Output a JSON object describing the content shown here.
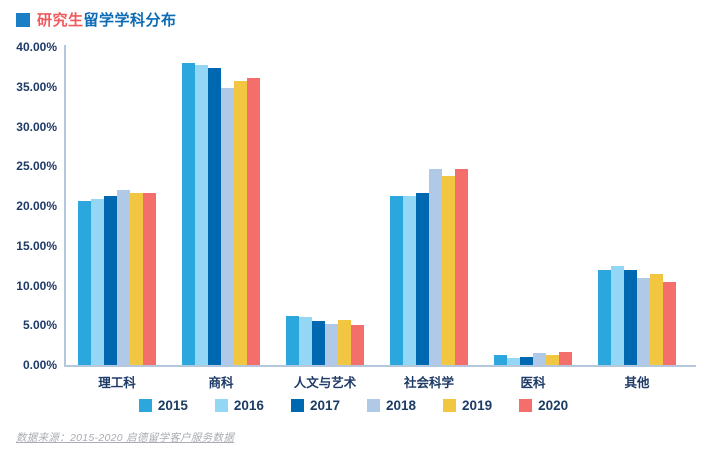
{
  "title": {
    "prefix": "研究生",
    "rest": "留学学科分布",
    "prefix_color": "#F05A5C",
    "rest_color": "#0C6CB5",
    "bullet_color": "#1A7FC4"
  },
  "colors": {
    "axis_line": "#B5C7DC",
    "axis_text": "#1E3A66",
    "footer_text": "#A9ADB3"
  },
  "chart_data": {
    "type": "bar",
    "title": "研究生留学学科分布",
    "categories": [
      "理工科",
      "商科",
      "人文与艺术",
      "社会科学",
      "医科",
      "其他"
    ],
    "series": [
      {
        "name": "2015",
        "color": "#2BA7DE",
        "values": [
          20.6,
          38.0,
          6.2,
          21.2,
          1.3,
          12.0
        ]
      },
      {
        "name": "2016",
        "color": "#93D7F4",
        "values": [
          20.9,
          37.7,
          6.1,
          21.3,
          0.9,
          12.4
        ]
      },
      {
        "name": "2017",
        "color": "#0068B0",
        "values": [
          21.3,
          37.3,
          5.5,
          21.7,
          1.0,
          11.9
        ]
      },
      {
        "name": "2018",
        "color": "#AFC9E6",
        "values": [
          22.0,
          34.9,
          5.2,
          24.6,
          1.5,
          11.0
        ]
      },
      {
        "name": "2019",
        "color": "#F3C642",
        "values": [
          21.7,
          35.7,
          5.6,
          23.8,
          1.3,
          11.5
        ]
      },
      {
        "name": "2020",
        "color": "#F46E6C",
        "values": [
          21.7,
          36.1,
          5.0,
          24.7,
          1.6,
          10.4
        ]
      }
    ],
    "ylim": [
      0,
      40
    ],
    "y_ticks": [
      "40.00%",
      "35.00%",
      "30.00%",
      "25.00%",
      "20.00%",
      "15.00%",
      "10.00%",
      "5.00%",
      "0.00%"
    ],
    "grid": false,
    "legend_position": "bottom"
  },
  "footer": {
    "source_text": "数据来源：2015-2020 启德留学客户服务数据"
  }
}
